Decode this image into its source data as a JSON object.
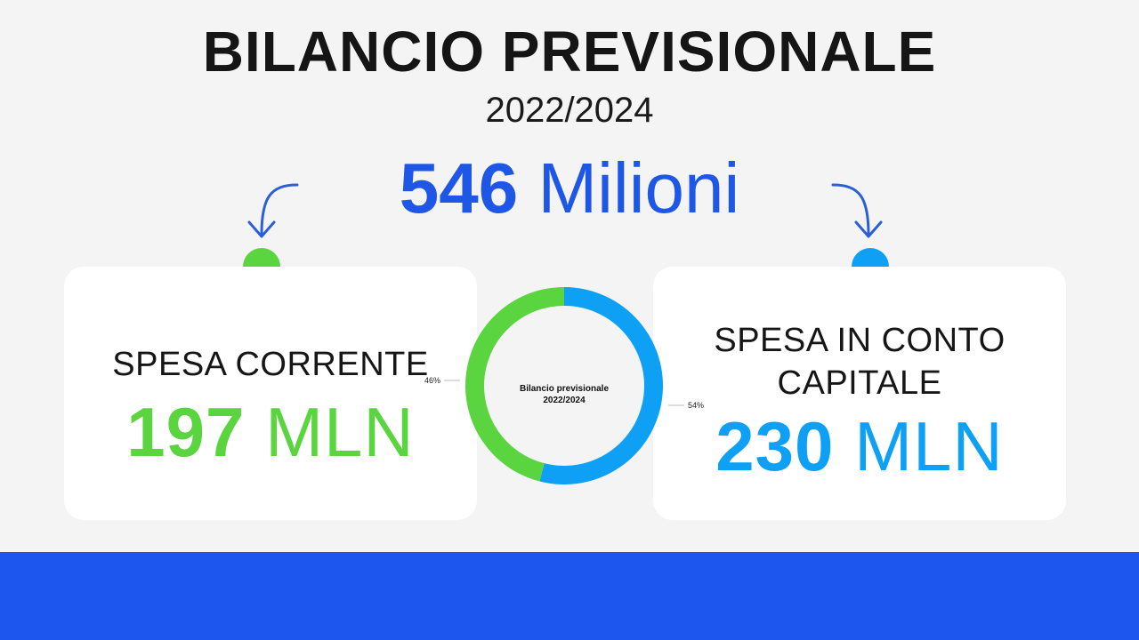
{
  "header": {
    "title": "BILANCIO PREVISIONALE",
    "subtitle": "2022/2024",
    "total_number": "546",
    "total_unit": "Milioni"
  },
  "cards": {
    "left": {
      "label": "SPESA CORRENTE",
      "value_number": "197",
      "value_unit": "MLN",
      "color": "#5ad43f"
    },
    "right": {
      "label_line1": "SPESA IN CONTO",
      "label_line2": "CAPITALE",
      "value_number": "230",
      "value_unit": "MLN",
      "color": "#0ea0f5"
    }
  },
  "colors": {
    "accent_blue": "#1e56e6",
    "footer_blue": "#1c56ef",
    "green": "#5ad43f",
    "light_blue": "#0ea0f5"
  },
  "icons": [
    "curved-arrow-down-left-icon",
    "curved-arrow-down-right-icon",
    "green-dot-icon",
    "blue-dot-icon"
  ],
  "chart_data": {
    "type": "pie",
    "donut": true,
    "title_line1": "Bilancio previsionale",
    "title_line2": "2022/2024",
    "slices": [
      {
        "label": "46%",
        "value": 46,
        "color": "#5ad43f"
      },
      {
        "label": "54%",
        "value": 54,
        "color": "#0ea0f5"
      }
    ]
  }
}
